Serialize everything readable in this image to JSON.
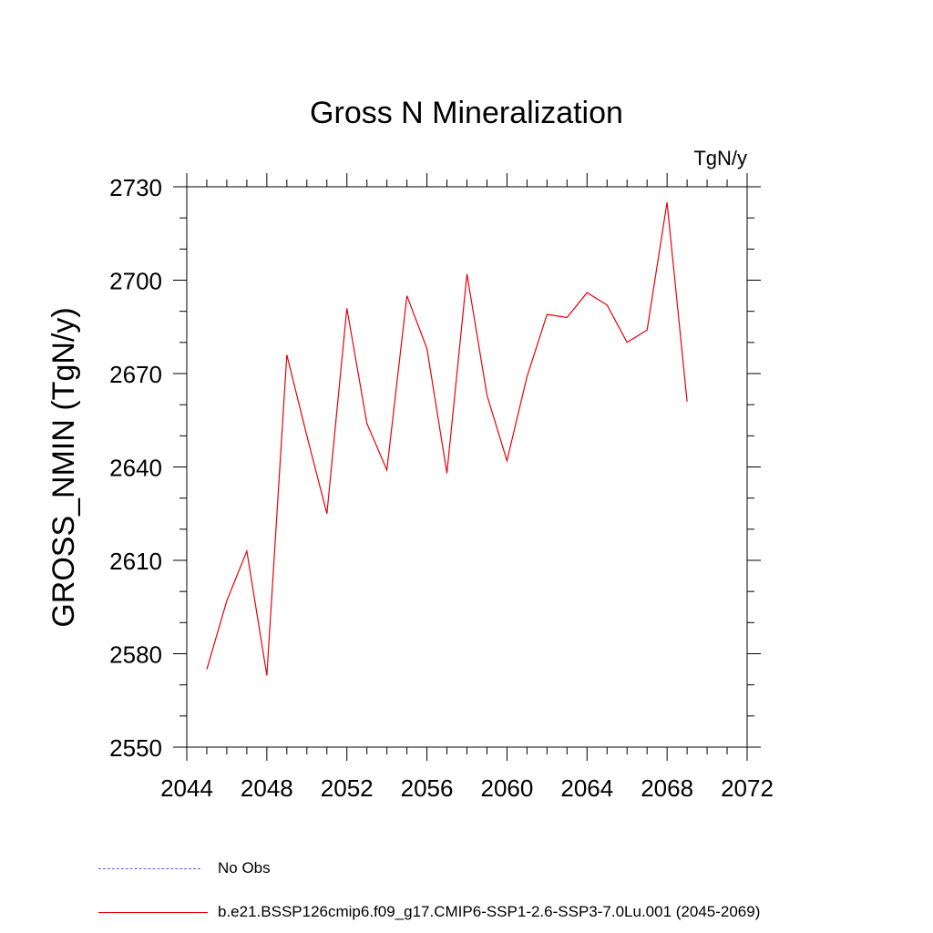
{
  "chart_data": {
    "type": "line",
    "title": "Gross N Mineralization",
    "units_label": "TgN/y",
    "ylabel": "GROSS_NMIN  (TgN/y)",
    "xlabel": "",
    "xlim": [
      2044,
      2072
    ],
    "ylim": [
      2550,
      2730
    ],
    "xticks": [
      2044,
      2048,
      2052,
      2056,
      2060,
      2064,
      2068,
      2072
    ],
    "yticks": [
      2550,
      2580,
      2610,
      2640,
      2670,
      2700,
      2730
    ],
    "x_minor_step": 1,
    "y_minor_step": 10,
    "grid": false,
    "series": [
      {
        "name": "b.e21.BSSP126cmip6.f09_g17.CMIP6-SSP1-2.6-SSP3-7.0Lu.001 (2045-2069)",
        "color": "#e8000b",
        "style": "solid",
        "x": [
          2045,
          2046,
          2047,
          2048,
          2049,
          2050,
          2051,
          2052,
          2053,
          2054,
          2055,
          2056,
          2057,
          2058,
          2059,
          2060,
          2061,
          2062,
          2063,
          2064,
          2065,
          2066,
          2067,
          2068,
          2069
        ],
        "y": [
          2575,
          2597,
          2613,
          2573,
          2676,
          2650,
          2625,
          2691,
          2654,
          2639,
          2695,
          2678,
          2638,
          2702,
          2663,
          2642,
          2669,
          2689,
          2688,
          2696,
          2692,
          2680,
          2684,
          2725,
          2661
        ]
      }
    ]
  },
  "legend": {
    "items": [
      {
        "label": "No Obs",
        "color": "#6a5acd",
        "style": "dashed"
      },
      {
        "label": "b.e21.BSSP126cmip6.f09_g17.CMIP6-SSP1-2.6-SSP3-7.0Lu.001 (2045-2069)",
        "color": "#e8000b",
        "style": "solid"
      }
    ]
  }
}
